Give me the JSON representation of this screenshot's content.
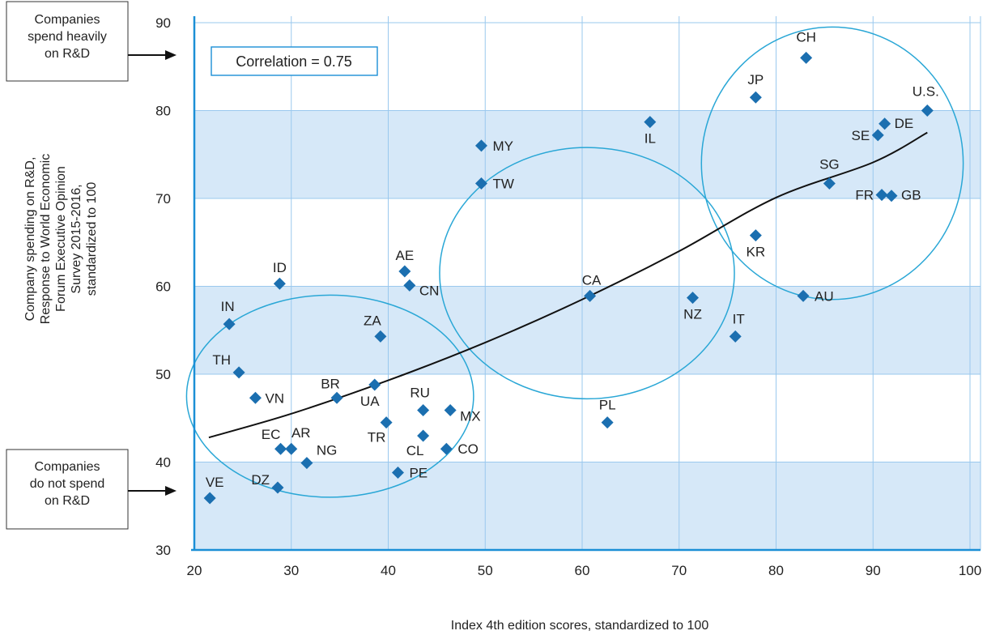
{
  "colors": {
    "band": "#d6e8f8",
    "grid": "#9ac8ee",
    "axis": "#1b8fd6",
    "marker": "#1b6fb0",
    "circle": "#2aa7d6",
    "trend": "#111111"
  },
  "annotations": {
    "top_box": [
      "Companies",
      "spend heavily",
      "on R&D"
    ],
    "bottom_box": [
      "Companies",
      "do not spend",
      "on R&D"
    ],
    "correlation": "Correlation = 0.75"
  },
  "chart_data": {
    "type": "scatter",
    "xlabel": "Index 4th edition scores, standardized to 100",
    "ylabel_lines": [
      "Company spending on R&D,",
      "Response to World Economic",
      "Forum Executive Opinion",
      "Survey 2015-2016,",
      "standardized to 100"
    ],
    "xlim": [
      20,
      100
    ],
    "ylim": [
      30,
      90
    ],
    "xticks": [
      20,
      30,
      40,
      50,
      60,
      70,
      80,
      90,
      100
    ],
    "yticks": [
      30,
      40,
      50,
      60,
      70,
      80,
      90
    ],
    "shaded_bands": [
      [
        30,
        40
      ],
      [
        50,
        60
      ],
      [
        70,
        80
      ]
    ],
    "grid": true,
    "points": [
      {
        "label": "CH",
        "x": 83.1,
        "y": 86.0
      },
      {
        "label": "JP",
        "x": 77.9,
        "y": 81.5
      },
      {
        "label": "U.S.",
        "x": 95.6,
        "y": 80.0
      },
      {
        "label": "DE",
        "x": 91.2,
        "y": 78.5
      },
      {
        "label": "SE",
        "x": 90.5,
        "y": 77.2
      },
      {
        "label": "IL",
        "x": 67.0,
        "y": 78.7
      },
      {
        "label": "MY",
        "x": 49.6,
        "y": 76.0
      },
      {
        "label": "TW",
        "x": 49.6,
        "y": 71.7
      },
      {
        "label": "SG",
        "x": 85.5,
        "y": 71.7
      },
      {
        "label": "FR",
        "x": 90.9,
        "y": 70.4
      },
      {
        "label": "GB",
        "x": 91.9,
        "y": 70.3
      },
      {
        "label": "KR",
        "x": 77.9,
        "y": 65.8
      },
      {
        "label": "AE",
        "x": 41.7,
        "y": 61.7
      },
      {
        "label": "CN",
        "x": 42.2,
        "y": 60.1
      },
      {
        "label": "ID",
        "x": 28.8,
        "y": 60.3
      },
      {
        "label": "CA",
        "x": 60.8,
        "y": 58.9
      },
      {
        "label": "NZ",
        "x": 71.4,
        "y": 58.7
      },
      {
        "label": "AU",
        "x": 82.8,
        "y": 58.9
      },
      {
        "label": "IN",
        "x": 23.6,
        "y": 55.7
      },
      {
        "label": "ZA",
        "x": 39.2,
        "y": 54.3
      },
      {
        "label": "IT",
        "x": 75.8,
        "y": 54.3
      },
      {
        "label": "TH",
        "x": 24.6,
        "y": 50.2
      },
      {
        "label": "UA",
        "x": 38.6,
        "y": 48.8
      },
      {
        "label": "VN",
        "x": 26.3,
        "y": 47.3
      },
      {
        "label": "BR",
        "x": 34.7,
        "y": 47.3
      },
      {
        "label": "RU",
        "x": 43.6,
        "y": 45.9
      },
      {
        "label": "MX",
        "x": 46.4,
        "y": 45.9
      },
      {
        "label": "TR",
        "x": 39.8,
        "y": 44.5
      },
      {
        "label": "PL",
        "x": 62.6,
        "y": 44.5
      },
      {
        "label": "CL",
        "x": 43.6,
        "y": 43.0
      },
      {
        "label": "EC",
        "x": 28.9,
        "y": 41.5
      },
      {
        "label": "AR",
        "x": 30.0,
        "y": 41.5
      },
      {
        "label": "CO",
        "x": 46.0,
        "y": 41.5
      },
      {
        "label": "NG",
        "x": 31.6,
        "y": 39.9
      },
      {
        "label": "PE",
        "x": 41.0,
        "y": 38.8
      },
      {
        "label": "DZ",
        "x": 28.6,
        "y": 37.1
      },
      {
        "label": "VE",
        "x": 21.6,
        "y": 35.9
      }
    ],
    "trendline": [
      [
        21.5,
        42.8
      ],
      [
        30,
        45.5
      ],
      [
        40,
        49.3
      ],
      [
        50,
        53.6
      ],
      [
        60,
        58.5
      ],
      [
        70,
        64.0
      ],
      [
        80,
        70.1
      ],
      [
        90,
        74.1
      ],
      [
        95.6,
        77.5
      ]
    ],
    "ellipses": [
      {
        "cx": 34.0,
        "cy": 47.5,
        "rx": 14.8,
        "ry": 11.5
      },
      {
        "cx": 60.5,
        "cy": 61.5,
        "rx": 15.2,
        "ry": 14.3
      },
      {
        "cx": 85.8,
        "cy": 74.0,
        "rx": 13.5,
        "ry": 15.5
      }
    ]
  }
}
